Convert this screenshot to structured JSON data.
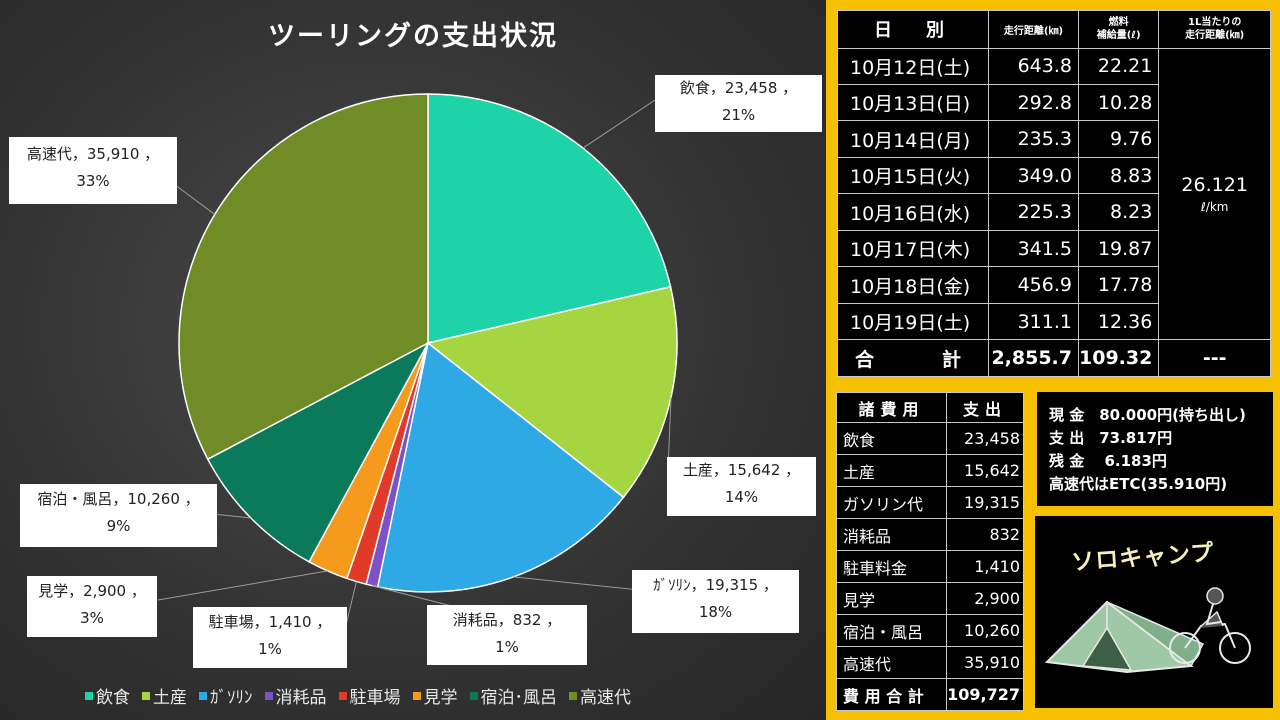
{
  "colors": {
    "panel_bg": "#3a3a3a",
    "accent_frame": "#f6c000",
    "slices": [
      "#1ed3a8",
      "#a5d641",
      "#2fa8e6",
      "#7b52c8",
      "#e03a28",
      "#f59a1d",
      "#0b7a5b",
      "#6f8c27"
    ]
  },
  "chart_data": {
    "type": "pie",
    "title": "ツーリングの支出状況",
    "slices": [
      {
        "name": "飲食",
        "value": 23458,
        "value_label": "23,458",
        "percent": "21%",
        "legend": "飲食",
        "label_name": "飲食"
      },
      {
        "name": "土産",
        "value": 15642,
        "value_label": "15,642",
        "percent": "14%",
        "legend": "土産",
        "label_name": "土産"
      },
      {
        "name": "ガソリン",
        "value": 19315,
        "value_label": "19,315",
        "percent": "18%",
        "legend": "ｶﾞｿﾘﾝ",
        "label_name": "ｶﾞｿﾘﾝ"
      },
      {
        "name": "消耗品",
        "value": 832,
        "value_label": "832",
        "percent": "1%",
        "legend": "消耗品",
        "label_name": "消耗品"
      },
      {
        "name": "駐車場",
        "value": 1410,
        "value_label": "1,410",
        "percent": "1%",
        "legend": "駐車場",
        "label_name": "駐車場"
      },
      {
        "name": "見学",
        "value": 2900,
        "value_label": "2,900",
        "percent": "3%",
        "legend": "見学",
        "label_name": "見学"
      },
      {
        "name": "宿泊・風呂",
        "value": 10260,
        "value_label": "10,260",
        "percent": "9%",
        "legend": "宿泊･風呂",
        "label_name": "宿泊・風呂"
      },
      {
        "name": "高速代",
        "value": 35910,
        "value_label": "35,910",
        "percent": "33%",
        "legend": "高速代",
        "label_name": "高速代"
      }
    ],
    "legend_position": "bottom"
  },
  "daily": {
    "headers": {
      "date": "日　別",
      "distance": "走行距離(㎞)",
      "fuel_line1": "燃料",
      "fuel_line2": "補給量(ℓ)",
      "eff_line1": "1L当たりの",
      "eff_line2": "走行距離(㎞)"
    },
    "rows": [
      {
        "date": "10月12日(土)",
        "distance": "643.8",
        "fuel": "22.21"
      },
      {
        "date": "10月13日(日)",
        "distance": "292.8",
        "fuel": "10.28"
      },
      {
        "date": "10月14日(月)",
        "distance": "235.3",
        "fuel": "9.76"
      },
      {
        "date": "10月15日(火)",
        "distance": "349.0",
        "fuel": "8.83"
      },
      {
        "date": "10月16日(水)",
        "distance": "225.3",
        "fuel": "8.23"
      },
      {
        "date": "10月17日(木)",
        "distance": "341.5",
        "fuel": "19.87"
      },
      {
        "date": "10月18日(金)",
        "distance": "456.9",
        "fuel": "17.78"
      },
      {
        "date": "10月19日(土)",
        "distance": "311.1",
        "fuel": "12.36"
      }
    ],
    "average": {
      "value": "26.121",
      "unit": "ℓ/km"
    },
    "total": {
      "label": "合　　計",
      "distance": "2,855.7",
      "fuel": "109.32",
      "eff": "---"
    }
  },
  "expenses": {
    "headers": {
      "item": "諸費用",
      "amount": "支出"
    },
    "rows": [
      {
        "name": "飲食",
        "value": "23,458"
      },
      {
        "name": "土産",
        "value": "15,642"
      },
      {
        "name": "ガソリン代",
        "value": "19,315"
      },
      {
        "name": "消耗品",
        "value": "832"
      },
      {
        "name": "駐車料金",
        "value": "1,410"
      },
      {
        "name": "見学",
        "value": "2,900"
      },
      {
        "name": "宿泊・風呂",
        "value": "10,260"
      },
      {
        "name": "高速代",
        "value": "35,910"
      }
    ],
    "total": {
      "name": "費 用 合 計",
      "value": "109,727"
    }
  },
  "cash": {
    "line1": "現 金　80.000円(持ち出し)",
    "line2": "支 出　73.817円",
    "line3": "残 金　 6.183円",
    "line4": "高速代はETC(35.910円)"
  },
  "solo": {
    "title": "ソロキャンプ",
    "illustration": "tent-and-motorcycle-icon"
  }
}
